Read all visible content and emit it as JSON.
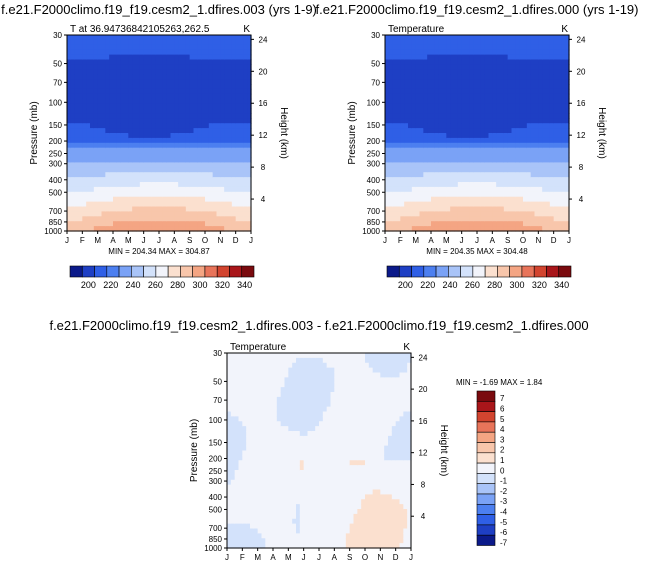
{
  "chart_data": [
    {
      "type": "heatmap",
      "panel": "top-left",
      "title": "f.e21.F2000climo.f19_f19.cesm2_1.dfires.003 (yrs 1-9)",
      "subtitle_left": "T at 36.94736842105263,262.5",
      "units": "K",
      "xlabel": "",
      "ylabel": "Pressure (mb)",
      "ylabel_right": "Height (km)",
      "x_ticks": [
        "J",
        "F",
        "M",
        "A",
        "M",
        "J",
        "J",
        "A",
        "S",
        "O",
        "N",
        "D",
        "J"
      ],
      "y_ticks": [
        "30",
        "50",
        "70",
        "100",
        "150",
        "200",
        "250",
        "300",
        "400",
        "500",
        "700",
        "850",
        "1000"
      ],
      "y_ticks_right": [
        "24",
        "20",
        "16",
        "12",
        "8",
        "4"
      ],
      "stats": "MIN = 204.34 MAX = 304.87",
      "colorbar_labels": [
        "200",
        "220",
        "240",
        "260",
        "280",
        "300",
        "320",
        "340"
      ],
      "colorbar_colors": [
        "#0b1a8a",
        "#1e3fc4",
        "#2f5fe6",
        "#4c7ff0",
        "#7aa2f6",
        "#a9c4f8",
        "#d3e2fb",
        "#f2f4fb",
        "#fbe0cf",
        "#f8c6ab",
        "#f4a583",
        "#e8745a",
        "#d2442f",
        "#a9161a",
        "#7a0a0e"
      ]
    },
    {
      "type": "heatmap",
      "panel": "top-right",
      "title": "f.e21.F2000climo.f19_f19.cesm2_1.dfires.000 (yrs 1-19)",
      "subtitle_left": "Temperature",
      "units": "K",
      "ylabel": "Pressure (mb)",
      "ylabel_right": "Height (km)",
      "x_ticks": [
        "J",
        "F",
        "M",
        "A",
        "M",
        "J",
        "J",
        "A",
        "S",
        "O",
        "N",
        "D",
        "J"
      ],
      "y_ticks": [
        "30",
        "50",
        "70",
        "100",
        "150",
        "200",
        "250",
        "300",
        "400",
        "500",
        "700",
        "850",
        "1000"
      ],
      "y_ticks_right": [
        "24",
        "20",
        "16",
        "12",
        "8",
        "4"
      ],
      "stats": "MIN = 204.35 MAX = 304.48",
      "colorbar_labels": [
        "200",
        "220",
        "240",
        "260",
        "280",
        "300",
        "320",
        "340"
      ]
    },
    {
      "type": "heatmap",
      "panel": "bottom",
      "title": "f.e21.F2000climo.f19_f19.cesm2_1.dfires.003 - f.e21.F2000climo.f19_f19.cesm2_1.dfires.000",
      "subtitle_left": "Temperature",
      "units": "K",
      "ylabel": "Pressure (mb)",
      "ylabel_right": "Height (km)",
      "x_ticks": [
        "J",
        "F",
        "M",
        "A",
        "M",
        "J",
        "J",
        "A",
        "S",
        "O",
        "N",
        "D",
        "J"
      ],
      "y_ticks": [
        "30",
        "50",
        "70",
        "100",
        "150",
        "200",
        "250",
        "300",
        "400",
        "500",
        "700",
        "850",
        "1000"
      ],
      "y_ticks_right": [
        "24",
        "20",
        "16",
        "12",
        "8",
        "4"
      ],
      "stats": "MIN = -1.69 MAX =  1.84",
      "colorbar_labels": [
        "7",
        "6",
        "5",
        "4",
        "3",
        "2",
        "1",
        "0",
        "-1",
        "-2",
        "-3",
        "-4",
        "-5",
        "-6",
        "-7"
      ],
      "colorbar_colors": [
        "#7a0a0e",
        "#a9161a",
        "#d2442f",
        "#e8745a",
        "#f4a583",
        "#f8c6ab",
        "#fbe0cf",
        "#f2f4fb",
        "#d3e2fb",
        "#a9c4f8",
        "#7aa2f6",
        "#4c7ff0",
        "#2f5fe6",
        "#1e3fc4",
        "#0b1a8a"
      ]
    }
  ]
}
